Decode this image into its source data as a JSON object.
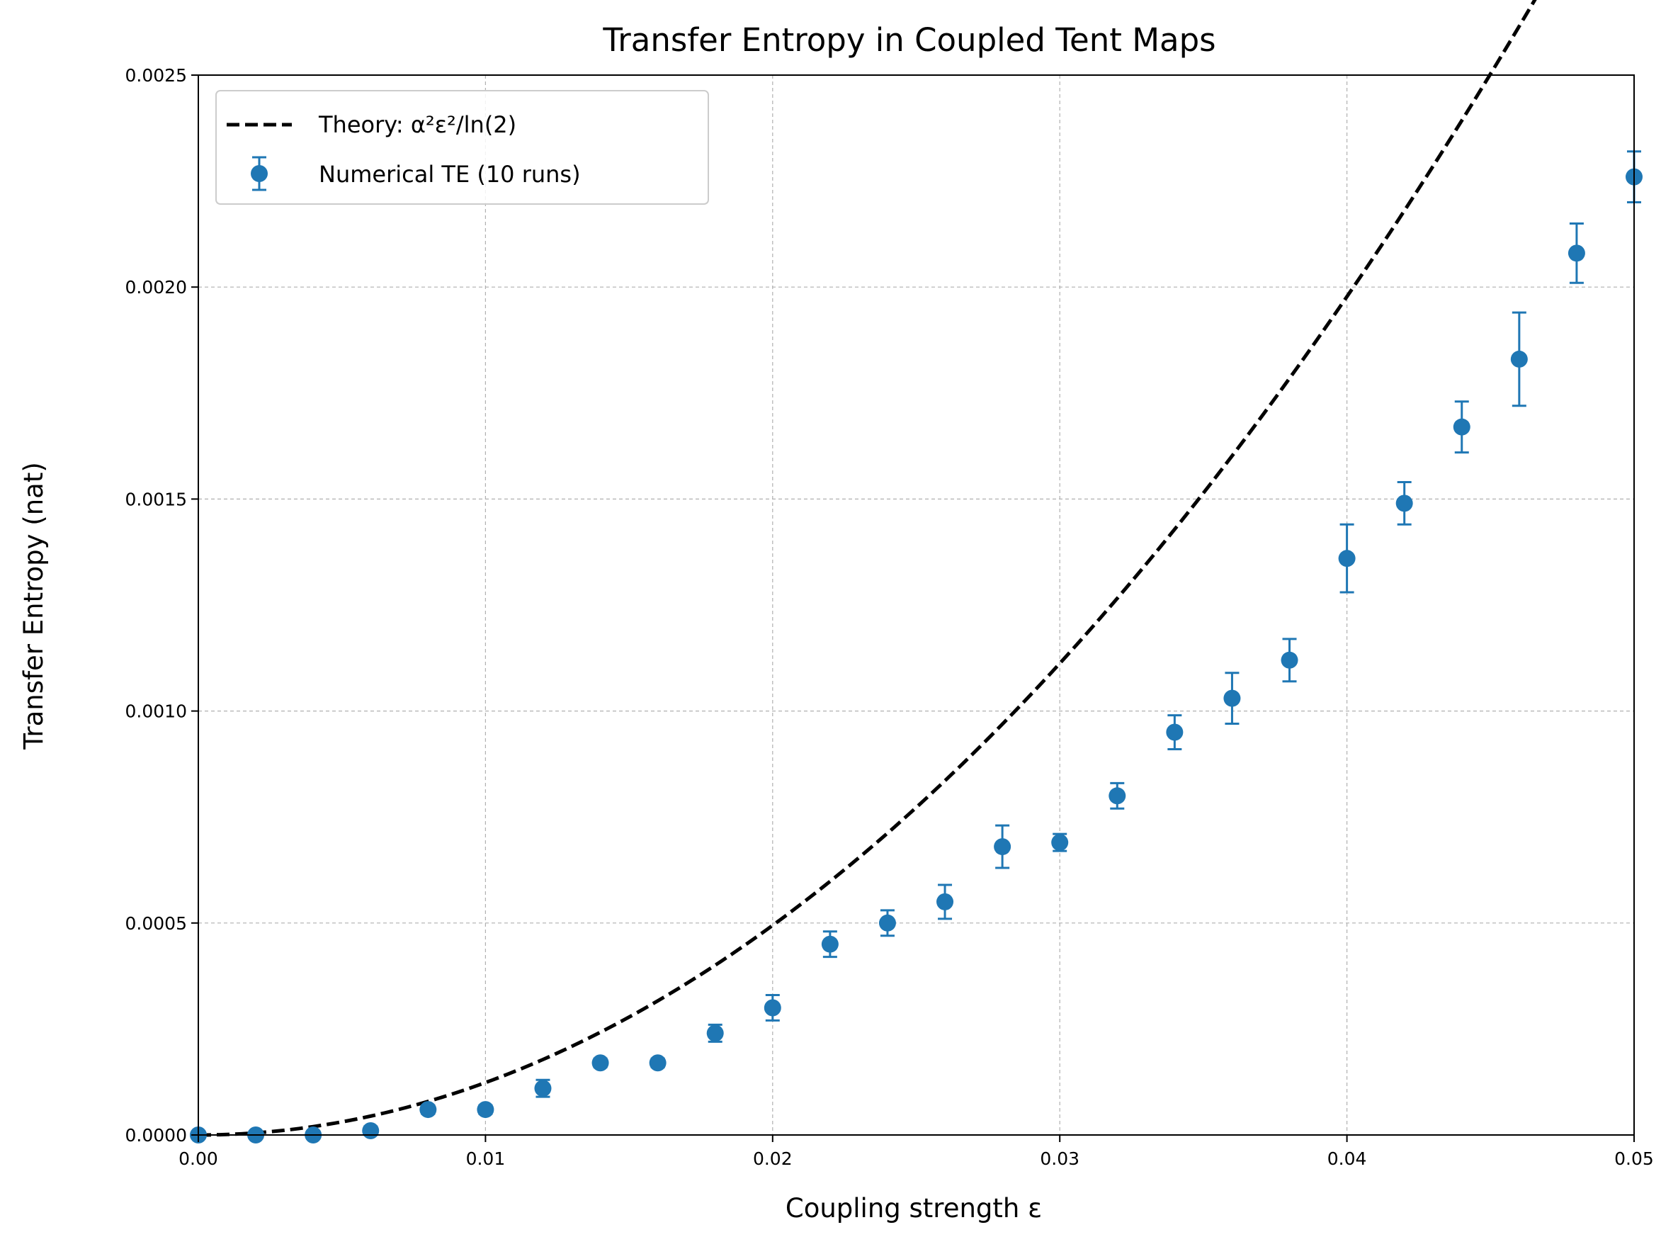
{
  "chart_data": {
    "type": "scatter",
    "title": "Transfer Entropy in Coupled Tent Maps",
    "xlabel": "Coupling strength ε",
    "ylabel": "Transfer Entropy (nat)",
    "xlim": [
      0,
      0.05
    ],
    "ylim": [
      0,
      0.0025
    ],
    "x_ticks": [
      "0.00",
      "0.01",
      "0.02",
      "0.03",
      "0.04",
      "0.05"
    ],
    "y_ticks": [
      "0.0000",
      "0.0005",
      "0.0010",
      "0.0015",
      "0.0020",
      "0.0025"
    ],
    "grid": true,
    "legend_position": "top-left",
    "series": [
      {
        "name": "Theory: α²ε²/ln(2)",
        "kind": "line",
        "style": "dashed",
        "color": "#000000",
        "formula": "0.8567 * x^2 / ln(2)"
      },
      {
        "name": "Numerical TE (10 runs)",
        "kind": "errorbar",
        "color": "#1f77b4",
        "x": [
          0.0,
          0.002,
          0.004,
          0.006,
          0.008,
          0.01,
          0.012,
          0.014,
          0.016,
          0.018,
          0.02,
          0.022,
          0.024,
          0.026,
          0.028,
          0.03,
          0.032,
          0.034,
          0.036,
          0.038,
          0.04,
          0.042,
          0.044,
          0.046,
          0.048,
          0.05
        ],
        "y": [
          0.0,
          0.0,
          0.0,
          1e-05,
          6e-05,
          6e-05,
          0.00011,
          0.00017,
          0.00017,
          0.00024,
          0.0003,
          0.00045,
          0.0005,
          0.00055,
          0.00068,
          0.00069,
          0.0008,
          0.00095,
          0.00103,
          0.00112,
          0.00136,
          0.00149,
          0.00167,
          0.00183,
          0.00208,
          0.00226
        ],
        "yerr": [
          0.0,
          0.0,
          0.0,
          1e-05,
          1e-05,
          1e-05,
          2e-05,
          1e-05,
          1e-05,
          2e-05,
          3e-05,
          3e-05,
          3e-05,
          4e-05,
          5e-05,
          2e-05,
          3e-05,
          4e-05,
          6e-05,
          5e-05,
          8e-05,
          5e-05,
          6e-05,
          0.00011,
          7e-05,
          6e-05
        ]
      }
    ]
  }
}
